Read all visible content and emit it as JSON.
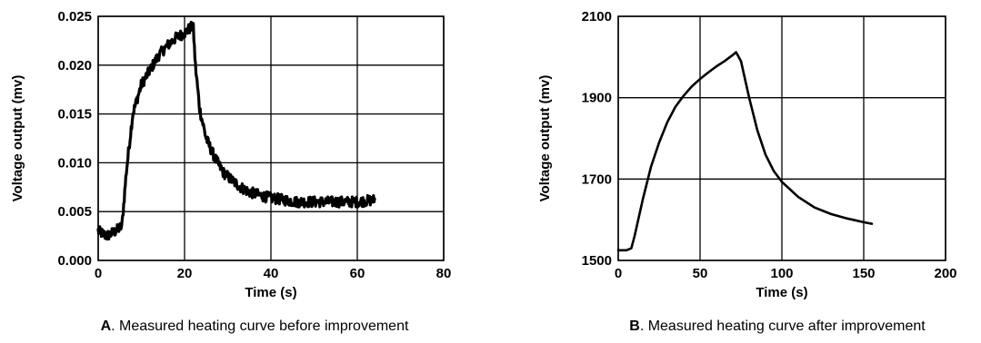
{
  "chart_data": [
    {
      "type": "line",
      "caption_letter": "A",
      "caption_text": ". Measured heating curve before improvement",
      "xlabel": "Time  (s)",
      "ylabel": "Voltage output  (mv)",
      "xlim": [
        0,
        80
      ],
      "ylim": [
        0,
        0.025
      ],
      "xticks": [
        0,
        20,
        40,
        60,
        80
      ],
      "xtick_labels": [
        "0",
        "20",
        "40",
        "60",
        "80"
      ],
      "yticks": [
        0,
        0.005,
        0.01,
        0.015,
        0.02,
        0.025
      ],
      "ytick_labels": [
        "0.000",
        "0.005",
        "0.010",
        "0.015",
        "0.020",
        "0.025"
      ],
      "grid": true,
      "noisy": true,
      "series": [
        {
          "x": [
            0,
            2,
            4,
            5.5,
            6.5,
            8,
            10,
            12,
            14,
            16,
            18,
            20,
            21,
            22,
            22.5,
            23.5,
            25,
            27,
            29,
            31,
            33,
            35,
            38,
            40,
            43,
            46,
            50,
            55,
            60,
            64
          ],
          "y": [
            0.003,
            0.0025,
            0.003,
            0.0035,
            0.009,
            0.015,
            0.018,
            0.0195,
            0.021,
            0.022,
            0.0228,
            0.0233,
            0.0237,
            0.024,
            0.02,
            0.0155,
            0.0125,
            0.0105,
            0.009,
            0.0082,
            0.0075,
            0.007,
            0.0066,
            0.0064,
            0.0062,
            0.006,
            0.006,
            0.006,
            0.006,
            0.0062
          ]
        }
      ]
    },
    {
      "type": "line",
      "caption_letter": "B",
      "caption_text": ". Measured heating curve after improvement",
      "xlabel": "Time  (s)",
      "ylabel": "Voltage output  (mv)",
      "xlim": [
        0,
        200
      ],
      "ylim": [
        1500,
        2100
      ],
      "xticks": [
        0,
        50,
        100,
        150,
        200
      ],
      "xtick_labels": [
        "0",
        "50",
        "100",
        "150",
        "200"
      ],
      "yticks": [
        1500,
        1700,
        1900,
        2100
      ],
      "ytick_labels": [
        "1500",
        "1700",
        "1900",
        "2100"
      ],
      "grid": true,
      "noisy": false,
      "series": [
        {
          "x": [
            0,
            5,
            8,
            10,
            15,
            20,
            25,
            30,
            35,
            40,
            45,
            50,
            55,
            60,
            65,
            70,
            72,
            75,
            80,
            85,
            90,
            95,
            100,
            110,
            120,
            130,
            140,
            150,
            155
          ],
          "y": [
            1525,
            1525,
            1530,
            1560,
            1650,
            1730,
            1790,
            1840,
            1878,
            1905,
            1928,
            1946,
            1962,
            1977,
            1990,
            2005,
            2012,
            1990,
            1900,
            1820,
            1760,
            1720,
            1693,
            1656,
            1630,
            1614,
            1603,
            1594,
            1590
          ]
        }
      ]
    }
  ]
}
